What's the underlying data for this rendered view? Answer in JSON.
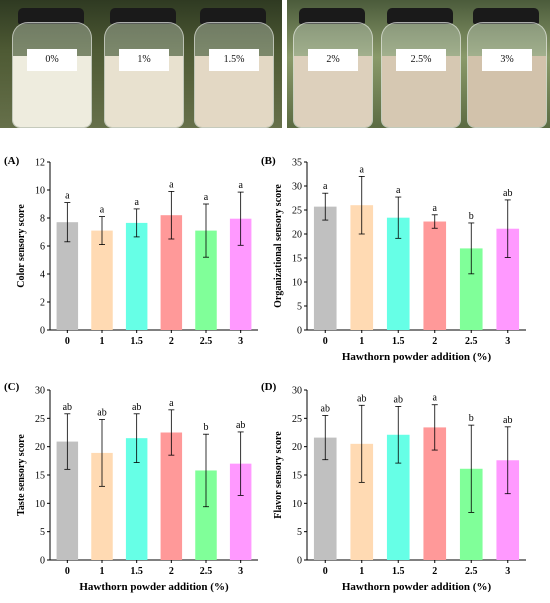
{
  "photos": [
    {
      "labels": [
        "0%",
        "1%",
        "1.5%"
      ]
    },
    {
      "labels": [
        "2%",
        "2.5%",
        "3%"
      ]
    }
  ],
  "colors": {
    "bars": [
      "#c0c0c0",
      "#ffdab3",
      "#66ffe6",
      "#ff9999",
      "#80ff99",
      "#ff99ff"
    ]
  },
  "chart_data": [
    {
      "type": "bar",
      "panel": "(A)",
      "categories": [
        "0",
        "1",
        "1.5",
        "2",
        "2.5",
        "3"
      ],
      "values": [
        7.7,
        7.1,
        7.65,
        8.2,
        7.1,
        7.95
      ],
      "errors": [
        1.4,
        1.0,
        1.0,
        1.7,
        1.9,
        1.9
      ],
      "significance": [
        "a",
        "a",
        "a",
        "a",
        "a",
        "a"
      ],
      "ylabel": "Color sensory score",
      "xlabel": "",
      "ylim": [
        0,
        12
      ],
      "yticks": [
        "0",
        "2",
        "4",
        "6",
        "8",
        "10",
        "12"
      ]
    },
    {
      "type": "bar",
      "panel": "(B)",
      "categories": [
        "0",
        "1",
        "1.5",
        "2",
        "2.5",
        "3"
      ],
      "values": [
        25.7,
        26.0,
        23.4,
        22.6,
        17.0,
        21.1
      ],
      "errors": [
        2.8,
        6.0,
        4.3,
        1.4,
        5.3,
        6.0
      ],
      "significance": [
        "a",
        "a",
        "a",
        "a",
        "b",
        "ab"
      ],
      "ylabel": "Organizational sensory score",
      "xlabel": "Hawthorn powder addition (%)",
      "ylim": [
        0,
        35
      ],
      "yticks": [
        "0",
        "5",
        "10",
        "15",
        "20",
        "25",
        "30",
        "35"
      ]
    },
    {
      "type": "bar",
      "panel": "(C)",
      "categories": [
        "0",
        "1",
        "1.5",
        "2",
        "2.5",
        "3"
      ],
      "values": [
        20.9,
        18.9,
        21.5,
        22.5,
        15.8,
        17.0
      ],
      "errors": [
        4.9,
        5.9,
        4.3,
        4.0,
        6.4,
        5.6
      ],
      "significance": [
        "ab",
        "ab",
        "ab",
        "a",
        "b",
        "ab"
      ],
      "ylabel": "Taste sensory score",
      "xlabel": "Hawthorn powder addition (%)",
      "ylim": [
        0,
        30
      ],
      "yticks": [
        "0",
        "5",
        "10",
        "15",
        "20",
        "25",
        "30"
      ]
    },
    {
      "type": "bar",
      "panel": "(D)",
      "categories": [
        "0",
        "1",
        "1.5",
        "2",
        "2.5",
        "3"
      ],
      "values": [
        21.6,
        20.5,
        22.1,
        23.4,
        16.1,
        17.6
      ],
      "errors": [
        3.9,
        6.8,
        5.0,
        4.0,
        7.7,
        5.9
      ],
      "significance": [
        "ab",
        "ab",
        "ab",
        "a",
        "b",
        "ab"
      ],
      "ylabel": "Flavor sensory score",
      "xlabel": "Hawthorn powder addition (%)",
      "ylim": [
        0,
        30
      ],
      "yticks": [
        "0",
        "5",
        "10",
        "15",
        "20",
        "25",
        "30"
      ]
    }
  ]
}
